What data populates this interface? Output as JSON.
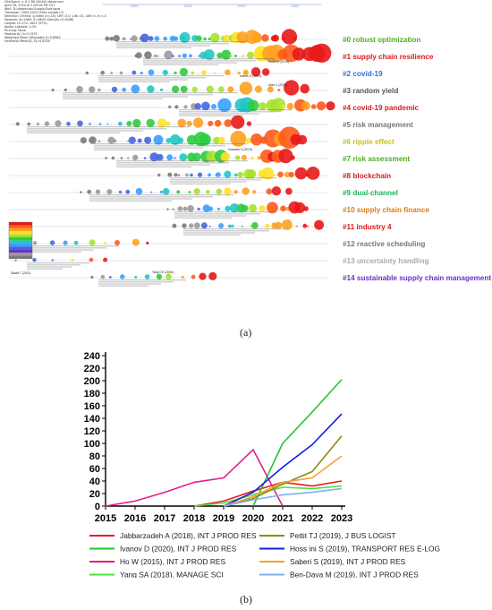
{
  "panels": {
    "a": "(a)",
    "b": "(b)"
  },
  "citespace_meta": [
    "CiteSpace, v. 6.2.R6 (64-bit) Advanced",
    "April 16, 2024 at 1:09:26 PM CST",
    "WoS: D:\\datamusic\\SupplyChain\\wos",
    "Timespan: 2004-2023 (Slice Length=1)",
    "Selection Criteria: g-index (k=25), LRF=3.0, L/N=10, LBY=5, e=1.0",
    "Network: N=1669, E=6620 (Density=0.0048)",
    "Largest 10 CCs: 1621 (97%)",
    "Nodes Labeled: 1.0%",
    "Pruning: None",
    "Modularity Q=0.7473",
    "Weighted Mean Silhouette S=0.8964",
    "Harmonic Mean(Q, S)=0.8150"
  ],
  "timeline_years": [
    "2009",
    "2014",
    "2019",
    "2024"
  ],
  "clusters": [
    {
      "label": "#0 robust optimization",
      "color": "#4caf1e"
    },
    {
      "label": "#1 supply chain resilience",
      "color": "#d81b1b"
    },
    {
      "label": "#2 covid-19",
      "color": "#2f6fd6"
    },
    {
      "label": "#3 random yield",
      "color": "#555555"
    },
    {
      "label": "#4 covid-19 pandemic",
      "color": "#d81b1b"
    },
    {
      "label": "#5 risk management",
      "color": "#777777"
    },
    {
      "label": "#6 ripple effect",
      "color": "#c8c21a"
    },
    {
      "label": "#7 risk assessment",
      "color": "#4caf1e"
    },
    {
      "label": "#8 blockchain",
      "color": "#d81b1b"
    },
    {
      "label": "#9 dual-channel",
      "color": "#1fb05a"
    },
    {
      "label": "#10 supply chain finance",
      "color": "#e07a10"
    },
    {
      "label": "#11 industry 4",
      "color": "#d81b1b"
    },
    {
      "label": "#12 reactive scheduling",
      "color": "#777777"
    },
    {
      "label": "#13 uncertainty handling",
      "color": "#aaaaaa"
    },
    {
      "label": "#14 sustainable supply chain management",
      "color": "#6a2fc9"
    }
  ],
  "node_labels": {
    "top_authors": [
      "Pettit TJ (2019)",
      "Ivanov D (2020)",
      "Hosseini S (2019)",
      "Allen J (2020)"
    ],
    "left_marks": [
      "Sawik T (2011)",
      "Tang CS (2006)"
    ]
  },
  "chart_data": {
    "type": "line",
    "x": [
      2015,
      2016,
      2017,
      2018,
      2019,
      2020,
      2021,
      2022,
      2023
    ],
    "ylim": [
      0,
      240
    ],
    "yticks": [
      0,
      20,
      40,
      60,
      80,
      100,
      120,
      140,
      160,
      180,
      200,
      220,
      240
    ],
    "xticks": [
      2015,
      2016,
      2017,
      2018,
      2019,
      2020,
      2021,
      2022,
      2023
    ],
    "series": [
      {
        "name": "Jabbarzadeh A (2018),  INT J PROD RES",
        "color": "#e8182c",
        "values": [
          null,
          null,
          null,
          0,
          8,
          24,
          38,
          32,
          40
        ]
      },
      {
        "name": "Ivanov D (2020),  INT J PROD RES",
        "color": "#22c52a",
        "values": [
          null,
          null,
          null,
          null,
          null,
          0,
          100,
          150,
          202
        ]
      },
      {
        "name": "Ho W (2015),  INT J PROD RES",
        "color": "#e61d8c",
        "values": [
          0,
          8,
          22,
          38,
          45,
          90,
          0,
          null,
          null
        ]
      },
      {
        "name": "Yang SA (2018),  MANAGE SCI",
        "color": "#4ce23c",
        "values": [
          null,
          null,
          null,
          0,
          5,
          18,
          30,
          28,
          32
        ]
      },
      {
        "name": "Pettit TJ (2019),  J BUS LOGIST",
        "color": "#8a8a10",
        "values": [
          null,
          null,
          null,
          null,
          0,
          12,
          35,
          55,
          112
        ]
      },
      {
        "name": "Hoss ini S (2019),  TRANSPORT RES E-LOG",
        "color": "#1020e0",
        "values": [
          null,
          null,
          null,
          null,
          0,
          22,
          62,
          98,
          147
        ]
      },
      {
        "name": "Saberi S (2019),  INT J PROD RES",
        "color": "#f7a030",
        "values": [
          null,
          null,
          null,
          null,
          0,
          15,
          38,
          45,
          80
        ]
      },
      {
        "name": "Ben-Daya M (2019),  INT J PROD RES",
        "color": "#7fb0f0",
        "values": [
          null,
          null,
          null,
          null,
          0,
          10,
          18,
          22,
          28
        ]
      }
    ]
  }
}
